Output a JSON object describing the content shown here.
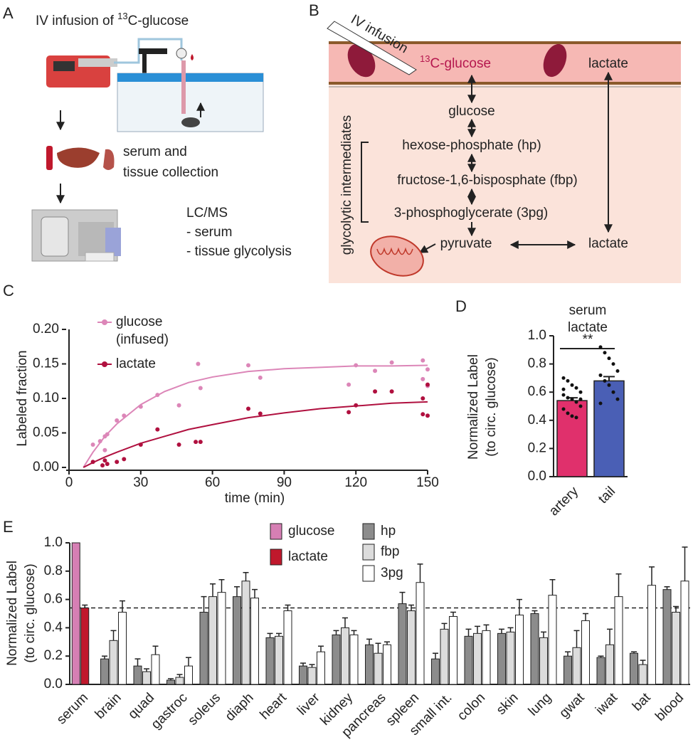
{
  "panel_labels": [
    "A",
    "B",
    "C",
    "D",
    "E"
  ],
  "panel_a": {
    "title": {
      "prefix": "IV infusion of ",
      "superscript": "13",
      "suffix": "C-glucose"
    },
    "collection": [
      "serum and",
      "tissue collection"
    ],
    "analysis": [
      "LC/MS",
      "- serum",
      "- tissue glycolysis"
    ]
  },
  "panel_b": {
    "infusion": "IV infusion",
    "tracer": {
      "superscript": "13",
      "suffix": "C-glucose"
    },
    "blood_lactate": "lactate",
    "group_label": "glycolytic intermediates",
    "nodes": [
      "glucose",
      "hexose-phosphate (hp)",
      "fructose-1,6-bisposphate (fbp)",
      "3-phosphoglycerate (3pg)",
      "pyruvate",
      "lactate"
    ]
  },
  "chart_data": [
    {
      "type": "scatter",
      "xlabel": "time (min)",
      "ylabel": "Labeled fraction",
      "xlim": [
        0,
        150
      ],
      "xticks": [
        0,
        30,
        60,
        90,
        120,
        150
      ],
      "ylim": [
        0,
        0.2
      ],
      "yticks": [
        {
          "value": 0,
          "label": "0.00"
        },
        {
          "value": 0.05,
          "label": "0.05"
        },
        {
          "value": 0.1,
          "label": "0.10"
        },
        {
          "value": 0.15,
          "label": "0.15"
        },
        {
          "value": 0.2,
          "label": "0.20"
        }
      ],
      "series": [
        {
          "name": "glucose (infused)",
          "color": "#dc86b8",
          "x": [
            10,
            13,
            15,
            15,
            16,
            20,
            23,
            30,
            37,
            46,
            54,
            55,
            75,
            80,
            117,
            120,
            128,
            135,
            148,
            148,
            150,
            150
          ],
          "values": [
            0.033,
            0.038,
            0.045,
            0.025,
            0.048,
            0.068,
            0.075,
            0.088,
            0.105,
            0.09,
            0.15,
            0.115,
            0.148,
            0.13,
            0.12,
            0.148,
            0.14,
            0.152,
            0.155,
            0.128,
            0.118,
            0.142
          ],
          "fit": {
            "x": [
              6,
              10,
              15,
              20,
              30,
              40,
              50,
              60,
              75,
              90,
              105,
              120,
              135,
              150
            ],
            "values": [
              0,
              0.022,
              0.045,
              0.063,
              0.091,
              0.11,
              0.123,
              0.131,
              0.139,
              0.143,
              0.145,
              0.147,
              0.147,
              0.148
            ]
          }
        },
        {
          "name": "lactate",
          "color": "#b0103f",
          "x": [
            10,
            14,
            15,
            16,
            20,
            23,
            30,
            37,
            46,
            53,
            55,
            75,
            80,
            117,
            120,
            128,
            135,
            148,
            148,
            150,
            150
          ],
          "values": [
            0.008,
            0.003,
            0.01,
            0.005,
            0.008,
            0.012,
            0.033,
            0.055,
            0.033,
            0.037,
            0.037,
            0.085,
            0.078,
            0.08,
            0.09,
            0.11,
            0.11,
            0.1,
            0.077,
            0.075,
            0.12
          ],
          "fit": {
            "x": [
              6,
              10,
              15,
              20,
              30,
              40,
              50,
              60,
              75,
              90,
              105,
              120,
              135,
              150
            ],
            "values": [
              0,
              0.007,
              0.015,
              0.022,
              0.035,
              0.045,
              0.055,
              0.062,
              0.072,
              0.079,
              0.085,
              0.089,
              0.093,
              0.095
            ]
          }
        }
      ]
    },
    {
      "type": "bar",
      "title": [
        "serum",
        "lactate"
      ],
      "ylabel": [
        "Normalized Label",
        "(to circ. glucose)"
      ],
      "categories": [
        "artery",
        "tail"
      ],
      "values": [
        0.54,
        0.68
      ],
      "errors": [
        0.02,
        0.03
      ],
      "colors": [
        "#e0306c",
        "#4a5fb5"
      ],
      "significance": "**",
      "points": [
        [
          0.7,
          0.68,
          0.65,
          0.63,
          0.6,
          0.58,
          0.56,
          0.55,
          0.53,
          0.5,
          0.48,
          0.45,
          0.43,
          0.42,
          0.55,
          0.62
        ],
        [
          0.92,
          0.88,
          0.84,
          0.8,
          0.75,
          0.72,
          0.68,
          0.65,
          0.6,
          0.55,
          0.52
        ]
      ],
      "ylim": [
        0,
        1
      ],
      "yticks": [
        {
          "value": 0,
          "label": "0.0"
        },
        0.2,
        0.4,
        0.6,
        0.8,
        {
          "value": 1,
          "label": "1.0"
        }
      ]
    },
    {
      "type": "grouped_bar",
      "ylabel": [
        "Normalized Label",
        "(to circ. glucose)"
      ],
      "categories": [
        "serum",
        "brain",
        "quad",
        "gastroc",
        "soleus",
        "diaph",
        "heart",
        "liver",
        "kidney",
        "pancreas",
        "spleen",
        "small int.",
        "colon",
        "skin",
        "lung",
        "gwat",
        "iwat",
        "bat",
        "blood"
      ],
      "ylim": [
        0,
        1
      ],
      "yticks": [
        {
          "value": 0,
          "label": "0.0"
        },
        0.2,
        0.4,
        0.6,
        0.8,
        {
          "value": 1,
          "label": "1.0"
        }
      ],
      "reference_line": 0.54,
      "series": [
        {
          "name": "glucose",
          "color": "#d67fb4",
          "values": [
            1,
            null,
            null,
            null,
            null,
            null,
            null,
            null,
            null,
            null,
            null,
            null,
            null,
            null,
            null,
            null,
            null,
            null,
            null
          ],
          "errors": [
            null,
            null,
            null,
            null,
            null,
            null,
            null,
            null,
            null,
            null,
            null,
            null,
            null,
            null,
            null,
            null,
            null,
            null,
            null
          ]
        },
        {
          "name": "lactate",
          "color": "#c0182c",
          "values": [
            0.54,
            null,
            null,
            null,
            null,
            null,
            null,
            null,
            null,
            null,
            null,
            null,
            null,
            null,
            null,
            null,
            null,
            null,
            null
          ],
          "errors": [
            0.02,
            null,
            null,
            null,
            null,
            null,
            null,
            null,
            null,
            null,
            null,
            null,
            null,
            null,
            null,
            null,
            null,
            null,
            null
          ]
        },
        {
          "name": "hp",
          "color": "#8c8c8c",
          "values": [
            null,
            0.18,
            0.13,
            0.03,
            0.51,
            0.62,
            0.33,
            0.13,
            0.35,
            0.28,
            0.57,
            0.18,
            0.34,
            0.36,
            0.5,
            0.2,
            0.19,
            0.22,
            0.67
          ],
          "errors": [
            null,
            0.02,
            0.05,
            0.01,
            0.11,
            0.07,
            0.03,
            0.02,
            0.03,
            0.04,
            0.08,
            0.04,
            0.05,
            0.03,
            0.02,
            0.03,
            0.01,
            0.01,
            0.02
          ]
        },
        {
          "name": "fbp",
          "color": "#dcdcdc",
          "values": [
            null,
            0.31,
            0.09,
            0.05,
            0.62,
            0.73,
            0.34,
            0.12,
            0.4,
            0.22,
            0.52,
            0.39,
            0.36,
            0.37,
            0.33,
            0.26,
            0.28,
            0.14,
            0.51
          ],
          "errors": [
            null,
            0.07,
            0.02,
            0.02,
            0.09,
            0.06,
            0.02,
            0.02,
            0.07,
            0.07,
            0.04,
            0.04,
            0.05,
            0.03,
            0.04,
            0.12,
            0.11,
            0.03,
            0.04
          ]
        },
        {
          "name": "3pg",
          "color": "#ffffff",
          "values": [
            null,
            0.51,
            0.21,
            0.13,
            0.65,
            0.61,
            0.52,
            0.23,
            0.35,
            0.28,
            0.72,
            0.48,
            0.38,
            0.49,
            0.63,
            0.45,
            0.62,
            0.7,
            0.73
          ],
          "errors": [
            null,
            0.08,
            0.06,
            0.06,
            0.09,
            0.06,
            0.04,
            0.04,
            0.03,
            0.02,
            0.13,
            0.03,
            0.04,
            0.11,
            0.11,
            0.05,
            0.16,
            0.13,
            0.24
          ]
        }
      ]
    }
  ]
}
